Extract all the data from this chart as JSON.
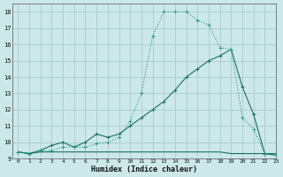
{
  "bg_color": "#cce8e8",
  "grid_color": "#aacccc",
  "line_color_dot": "#2a9a80",
  "line_color_mid": "#1a7060",
  "line_color_flat": "#1a7060",
  "xlabel": "Humidex (Indice chaleur)",
  "xlim": [
    -0.5,
    23
  ],
  "ylim": [
    9,
    18.5
  ],
  "xticks": [
    0,
    1,
    2,
    3,
    4,
    5,
    6,
    7,
    8,
    9,
    10,
    11,
    12,
    13,
    14,
    15,
    16,
    17,
    18,
    19,
    20,
    21,
    22,
    23
  ],
  "yticks": [
    9,
    10,
    11,
    12,
    13,
    14,
    15,
    16,
    17,
    18
  ],
  "line_dot_x": [
    0,
    1,
    2,
    3,
    4,
    5,
    6,
    7,
    8,
    9,
    10,
    11,
    12,
    13,
    14,
    15,
    16,
    17,
    18,
    19,
    20,
    21,
    22,
    23
  ],
  "line_dot_y": [
    9.4,
    9.3,
    9.5,
    9.5,
    9.7,
    9.7,
    9.7,
    9.9,
    10.0,
    10.3,
    11.3,
    13.0,
    16.5,
    18.0,
    18.0,
    18.0,
    17.5,
    17.2,
    15.8,
    15.7,
    11.5,
    10.8,
    9.3,
    9.2
  ],
  "line_mid_x": [
    0,
    1,
    2,
    3,
    4,
    5,
    6,
    7,
    8,
    9,
    10,
    11,
    12,
    13,
    14,
    15,
    16,
    17,
    18,
    19,
    20,
    21,
    22,
    23
  ],
  "line_mid_y": [
    9.4,
    9.3,
    9.5,
    9.8,
    10.0,
    9.7,
    10.0,
    10.5,
    10.3,
    10.5,
    11.0,
    11.5,
    12.0,
    12.5,
    13.2,
    14.0,
    14.5,
    15.0,
    15.3,
    15.7,
    13.4,
    11.7,
    9.3,
    9.2
  ],
  "line_flat_x": [
    0,
    1,
    2,
    3,
    4,
    5,
    6,
    7,
    8,
    9,
    10,
    11,
    12,
    13,
    14,
    15,
    16,
    17,
    18,
    19,
    20,
    21,
    22,
    23
  ],
  "line_flat_y": [
    9.4,
    9.3,
    9.4,
    9.4,
    9.4,
    9.4,
    9.4,
    9.4,
    9.4,
    9.4,
    9.4,
    9.4,
    9.4,
    9.4,
    9.4,
    9.4,
    9.4,
    9.4,
    9.4,
    9.3,
    9.3,
    9.3,
    9.3,
    9.3
  ]
}
